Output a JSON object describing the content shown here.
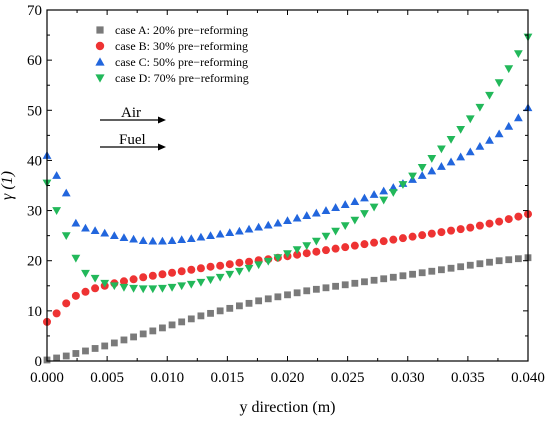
{
  "chart_data": {
    "type": "scatter",
    "xlabel": "y direction (m)",
    "ylabel": "γ (1)",
    "xlim": [
      0.0,
      0.04
    ],
    "ylim": [
      0,
      70
    ],
    "xticks": [
      0.0,
      0.005,
      0.01,
      0.015,
      0.02,
      0.025,
      0.03,
      0.035,
      0.04
    ],
    "xtick_labels": [
      "0.000",
      "0.005",
      "0.010",
      "0.015",
      "0.020",
      "0.025",
      "0.030",
      "0.035",
      "0.040"
    ],
    "yticks": [
      0,
      10,
      20,
      30,
      40,
      50,
      60,
      70
    ],
    "ytick_labels": [
      "0",
      "10",
      "20",
      "30",
      "40",
      "50",
      "60",
      "70"
    ],
    "grid": false,
    "legend_position": "top-left",
    "annotations": [
      {
        "text": "Air",
        "direction": "right-arrow"
      },
      {
        "text": "Fuel",
        "direction": "right-arrow"
      }
    ],
    "series": [
      {
        "name": "case A: 20% pre−reforming",
        "marker": "square",
        "color": "#7a7a7a",
        "x": [
          0.0,
          0.0008,
          0.0016,
          0.0024,
          0.0032,
          0.004,
          0.0048,
          0.0056,
          0.0064,
          0.0072,
          0.008,
          0.0088,
          0.0096,
          0.0104,
          0.0112,
          0.012,
          0.0128,
          0.0136,
          0.0144,
          0.0152,
          0.016,
          0.0168,
          0.0176,
          0.0184,
          0.0192,
          0.02,
          0.0208,
          0.0216,
          0.0224,
          0.0232,
          0.024,
          0.0248,
          0.0256,
          0.0264,
          0.0272,
          0.028,
          0.0288,
          0.0296,
          0.0304,
          0.0312,
          0.032,
          0.0328,
          0.0336,
          0.0344,
          0.0352,
          0.036,
          0.0368,
          0.0376,
          0.0384,
          0.0392,
          0.04
        ],
        "y": [
          0.2,
          0.6,
          1.0,
          1.5,
          2.0,
          2.5,
          3.0,
          3.6,
          4.2,
          4.8,
          5.4,
          6.0,
          6.6,
          7.2,
          7.8,
          8.4,
          9.0,
          9.5,
          10.0,
          10.5,
          11.0,
          11.5,
          12.0,
          12.4,
          12.8,
          13.2,
          13.6,
          14.0,
          14.3,
          14.6,
          14.9,
          15.2,
          15.5,
          15.8,
          16.1,
          16.4,
          16.7,
          17.0,
          17.3,
          17.6,
          17.9,
          18.2,
          18.5,
          18.8,
          19.1,
          19.4,
          19.7,
          20.0,
          20.2,
          20.4,
          20.6
        ]
      },
      {
        "name": "case B: 30%  pre−reforming",
        "marker": "circle",
        "color": "#ee3333",
        "x": [
          0.0,
          0.0008,
          0.0016,
          0.0024,
          0.0032,
          0.004,
          0.0048,
          0.0056,
          0.0064,
          0.0072,
          0.008,
          0.0088,
          0.0096,
          0.0104,
          0.0112,
          0.012,
          0.0128,
          0.0136,
          0.0144,
          0.0152,
          0.016,
          0.0168,
          0.0176,
          0.0184,
          0.0192,
          0.02,
          0.0208,
          0.0216,
          0.0224,
          0.0232,
          0.024,
          0.0248,
          0.0256,
          0.0264,
          0.0272,
          0.028,
          0.0288,
          0.0296,
          0.0304,
          0.0312,
          0.032,
          0.0328,
          0.0336,
          0.0344,
          0.0352,
          0.036,
          0.0368,
          0.0376,
          0.0384,
          0.0392,
          0.04
        ],
        "y": [
          7.8,
          9.5,
          11.5,
          13.0,
          13.8,
          14.5,
          15.0,
          15.5,
          15.9,
          16.3,
          16.7,
          17.0,
          17.3,
          17.6,
          17.9,
          18.2,
          18.5,
          18.8,
          19.0,
          19.3,
          19.6,
          19.8,
          20.1,
          20.3,
          20.6,
          20.9,
          21.2,
          21.5,
          21.8,
          22.1,
          22.4,
          22.7,
          23.0,
          23.3,
          23.6,
          23.9,
          24.2,
          24.5,
          24.8,
          25.1,
          25.4,
          25.7,
          26.0,
          26.3,
          26.6,
          27.0,
          27.4,
          27.8,
          28.3,
          28.8,
          29.3
        ]
      },
      {
        "name": "case C: 50%  pre−reforming",
        "marker": "triangle-up",
        "color": "#2266dd",
        "x": [
          0.0,
          0.0008,
          0.0016,
          0.0024,
          0.0032,
          0.004,
          0.0048,
          0.0056,
          0.0064,
          0.0072,
          0.008,
          0.0088,
          0.0096,
          0.0104,
          0.0112,
          0.012,
          0.0128,
          0.0136,
          0.0144,
          0.0152,
          0.016,
          0.0168,
          0.0176,
          0.0184,
          0.0192,
          0.02,
          0.0208,
          0.0216,
          0.0224,
          0.0232,
          0.024,
          0.0248,
          0.0256,
          0.0264,
          0.0272,
          0.028,
          0.0288,
          0.0296,
          0.0304,
          0.0312,
          0.032,
          0.0328,
          0.0336,
          0.0344,
          0.0352,
          0.036,
          0.0368,
          0.0376,
          0.0384,
          0.0392,
          0.04
        ],
        "y": [
          41.0,
          37.0,
          33.5,
          27.5,
          26.5,
          26.0,
          25.5,
          25.0,
          24.6,
          24.3,
          24.0,
          23.9,
          23.9,
          24.0,
          24.2,
          24.4,
          24.7,
          25.0,
          25.3,
          25.6,
          25.9,
          26.3,
          26.7,
          27.1,
          27.5,
          28.0,
          28.5,
          29.0,
          29.5,
          30.0,
          30.6,
          31.2,
          31.8,
          32.5,
          33.2,
          33.9,
          34.6,
          35.4,
          36.2,
          37.0,
          37.9,
          38.8,
          39.7,
          40.7,
          41.7,
          42.8,
          44.0,
          45.3,
          46.8,
          48.5,
          50.5
        ]
      },
      {
        "name": "case D: 70% pre−reforming",
        "marker": "triangle-down",
        "color": "#22b85a",
        "x": [
          0.0,
          0.0008,
          0.0016,
          0.0024,
          0.0032,
          0.004,
          0.0048,
          0.0056,
          0.0064,
          0.0072,
          0.008,
          0.0088,
          0.0096,
          0.0104,
          0.0112,
          0.012,
          0.0128,
          0.0136,
          0.0144,
          0.0152,
          0.016,
          0.0168,
          0.0176,
          0.0184,
          0.0192,
          0.02,
          0.0208,
          0.0216,
          0.0224,
          0.0232,
          0.024,
          0.0248,
          0.0256,
          0.0264,
          0.0272,
          0.028,
          0.0288,
          0.0296,
          0.0304,
          0.0312,
          0.032,
          0.0328,
          0.0336,
          0.0344,
          0.0352,
          0.036,
          0.0368,
          0.0376,
          0.0384,
          0.0392,
          0.04
        ],
        "y": [
          35.5,
          30.0,
          25.0,
          20.5,
          17.5,
          16.5,
          15.5,
          15.0,
          14.7,
          14.5,
          14.4,
          14.4,
          14.5,
          14.7,
          15.0,
          15.3,
          15.7,
          16.2,
          16.7,
          17.3,
          17.9,
          18.5,
          19.2,
          19.9,
          20.6,
          21.4,
          22.2,
          23.0,
          23.9,
          24.9,
          25.9,
          27.0,
          28.1,
          29.4,
          30.7,
          32.1,
          33.6,
          35.2,
          36.9,
          38.6,
          40.4,
          42.3,
          44.2,
          46.2,
          48.3,
          50.6,
          53.0,
          55.5,
          58.3,
          61.3,
          64.6
        ]
      }
    ]
  }
}
